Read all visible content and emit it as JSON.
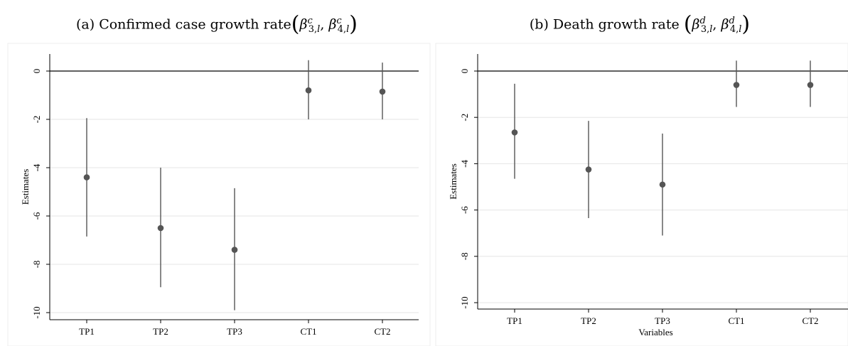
{
  "chart_data": [
    {
      "type": "scatter",
      "subtype": "coefficient plot with confidence intervals",
      "title": "(a) Confirmed case growth rate(β^c_{3,l}, β^c_{4,l})",
      "xlabel": "",
      "ylabel": "Estimates",
      "categories": [
        "TP1",
        "TP2",
        "TP3",
        "CT1",
        "CT2"
      ],
      "estimates": [
        -4.4,
        -6.5,
        -7.4,
        -0.8,
        -0.85
      ],
      "ci_lower": [
        -6.85,
        -8.95,
        -9.9,
        -2.0,
        -2.0
      ],
      "ci_upper": [
        -1.95,
        -4.0,
        -4.85,
        0.45,
        0.35
      ],
      "ylim": [
        -10.2,
        0.7
      ],
      "yticks": [
        0,
        -2,
        -4,
        -6,
        -8,
        -10
      ],
      "ytick_labels": [
        "0",
        "-2",
        "-4",
        "-6",
        "-8",
        "-10"
      ],
      "reference_line": 0,
      "grid": true,
      "legend": "none"
    },
    {
      "type": "scatter",
      "subtype": "coefficient plot with confidence intervals",
      "title": "(b) Death growth rate (β^d_{3,l}, β^d_{4,l})",
      "xlabel": "Variables",
      "ylabel": "Estimates",
      "categories": [
        "TP1",
        "TP2",
        "TP3",
        "CT1",
        "CT2"
      ],
      "estimates": [
        -2.65,
        -4.25,
        -4.9,
        -0.6,
        -0.6
      ],
      "ci_lower": [
        -4.65,
        -6.35,
        -7.1,
        -1.55,
        -1.55
      ],
      "ci_upper": [
        -0.55,
        -2.15,
        -2.7,
        0.45,
        0.45
      ],
      "ylim": [
        -10.3,
        0.75
      ],
      "yticks": [
        0,
        -2,
        -4,
        -6,
        -8,
        -10
      ],
      "ytick_labels": [
        "0",
        "-2",
        "-4",
        "-6",
        "-8",
        "-10"
      ],
      "reference_line": 0,
      "grid": true,
      "legend": "none"
    }
  ],
  "colors": {
    "marker": "#555555",
    "ci_line": "#555555",
    "reference_line": "#000000",
    "grid": "#e6e6e6",
    "axis": "#000000",
    "frame": "#eeeeee"
  }
}
